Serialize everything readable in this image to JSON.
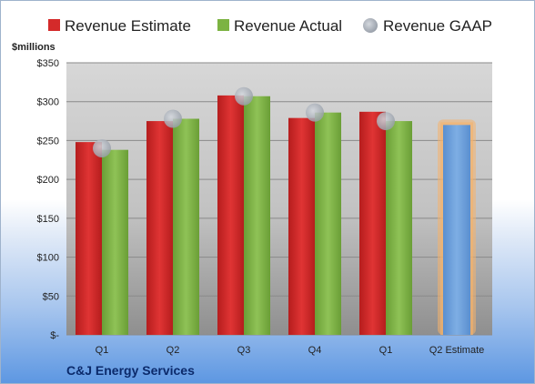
{
  "chart_data": {
    "type": "bar",
    "company": "C&J Energy Services",
    "ylabel": "$millions",
    "ylim": [
      0,
      350
    ],
    "ytick_values": [
      0,
      50,
      100,
      150,
      200,
      250,
      300,
      350
    ],
    "ytick_labels": [
      "$-",
      "$50",
      "$100",
      "$150",
      "$200",
      "$250",
      "$300",
      "$350"
    ],
    "categories": [
      "Q1",
      "Q2",
      "Q3",
      "Q4",
      "Q1",
      "Q2 Estimate"
    ],
    "series": [
      {
        "name": "Revenue Estimate",
        "kind": "bar",
        "color": "#d42a2a",
        "values": [
          248,
          275,
          308,
          279,
          287,
          null
        ]
      },
      {
        "name": "Revenue Actual",
        "kind": "bar",
        "color": "#7cb342",
        "values": [
          238,
          278,
          307,
          286,
          275,
          null
        ]
      },
      {
        "name": "Revenue GAAP",
        "kind": "marker",
        "color": "#a9afb8",
        "values": [
          240,
          278,
          307,
          286,
          275,
          null
        ]
      }
    ],
    "next_quarter_estimate": {
      "category": "Q2 Estimate",
      "value": 270,
      "color": "#6b9fda",
      "glow_color": "#f5b36b"
    },
    "grid": true,
    "legend_position": "top"
  }
}
